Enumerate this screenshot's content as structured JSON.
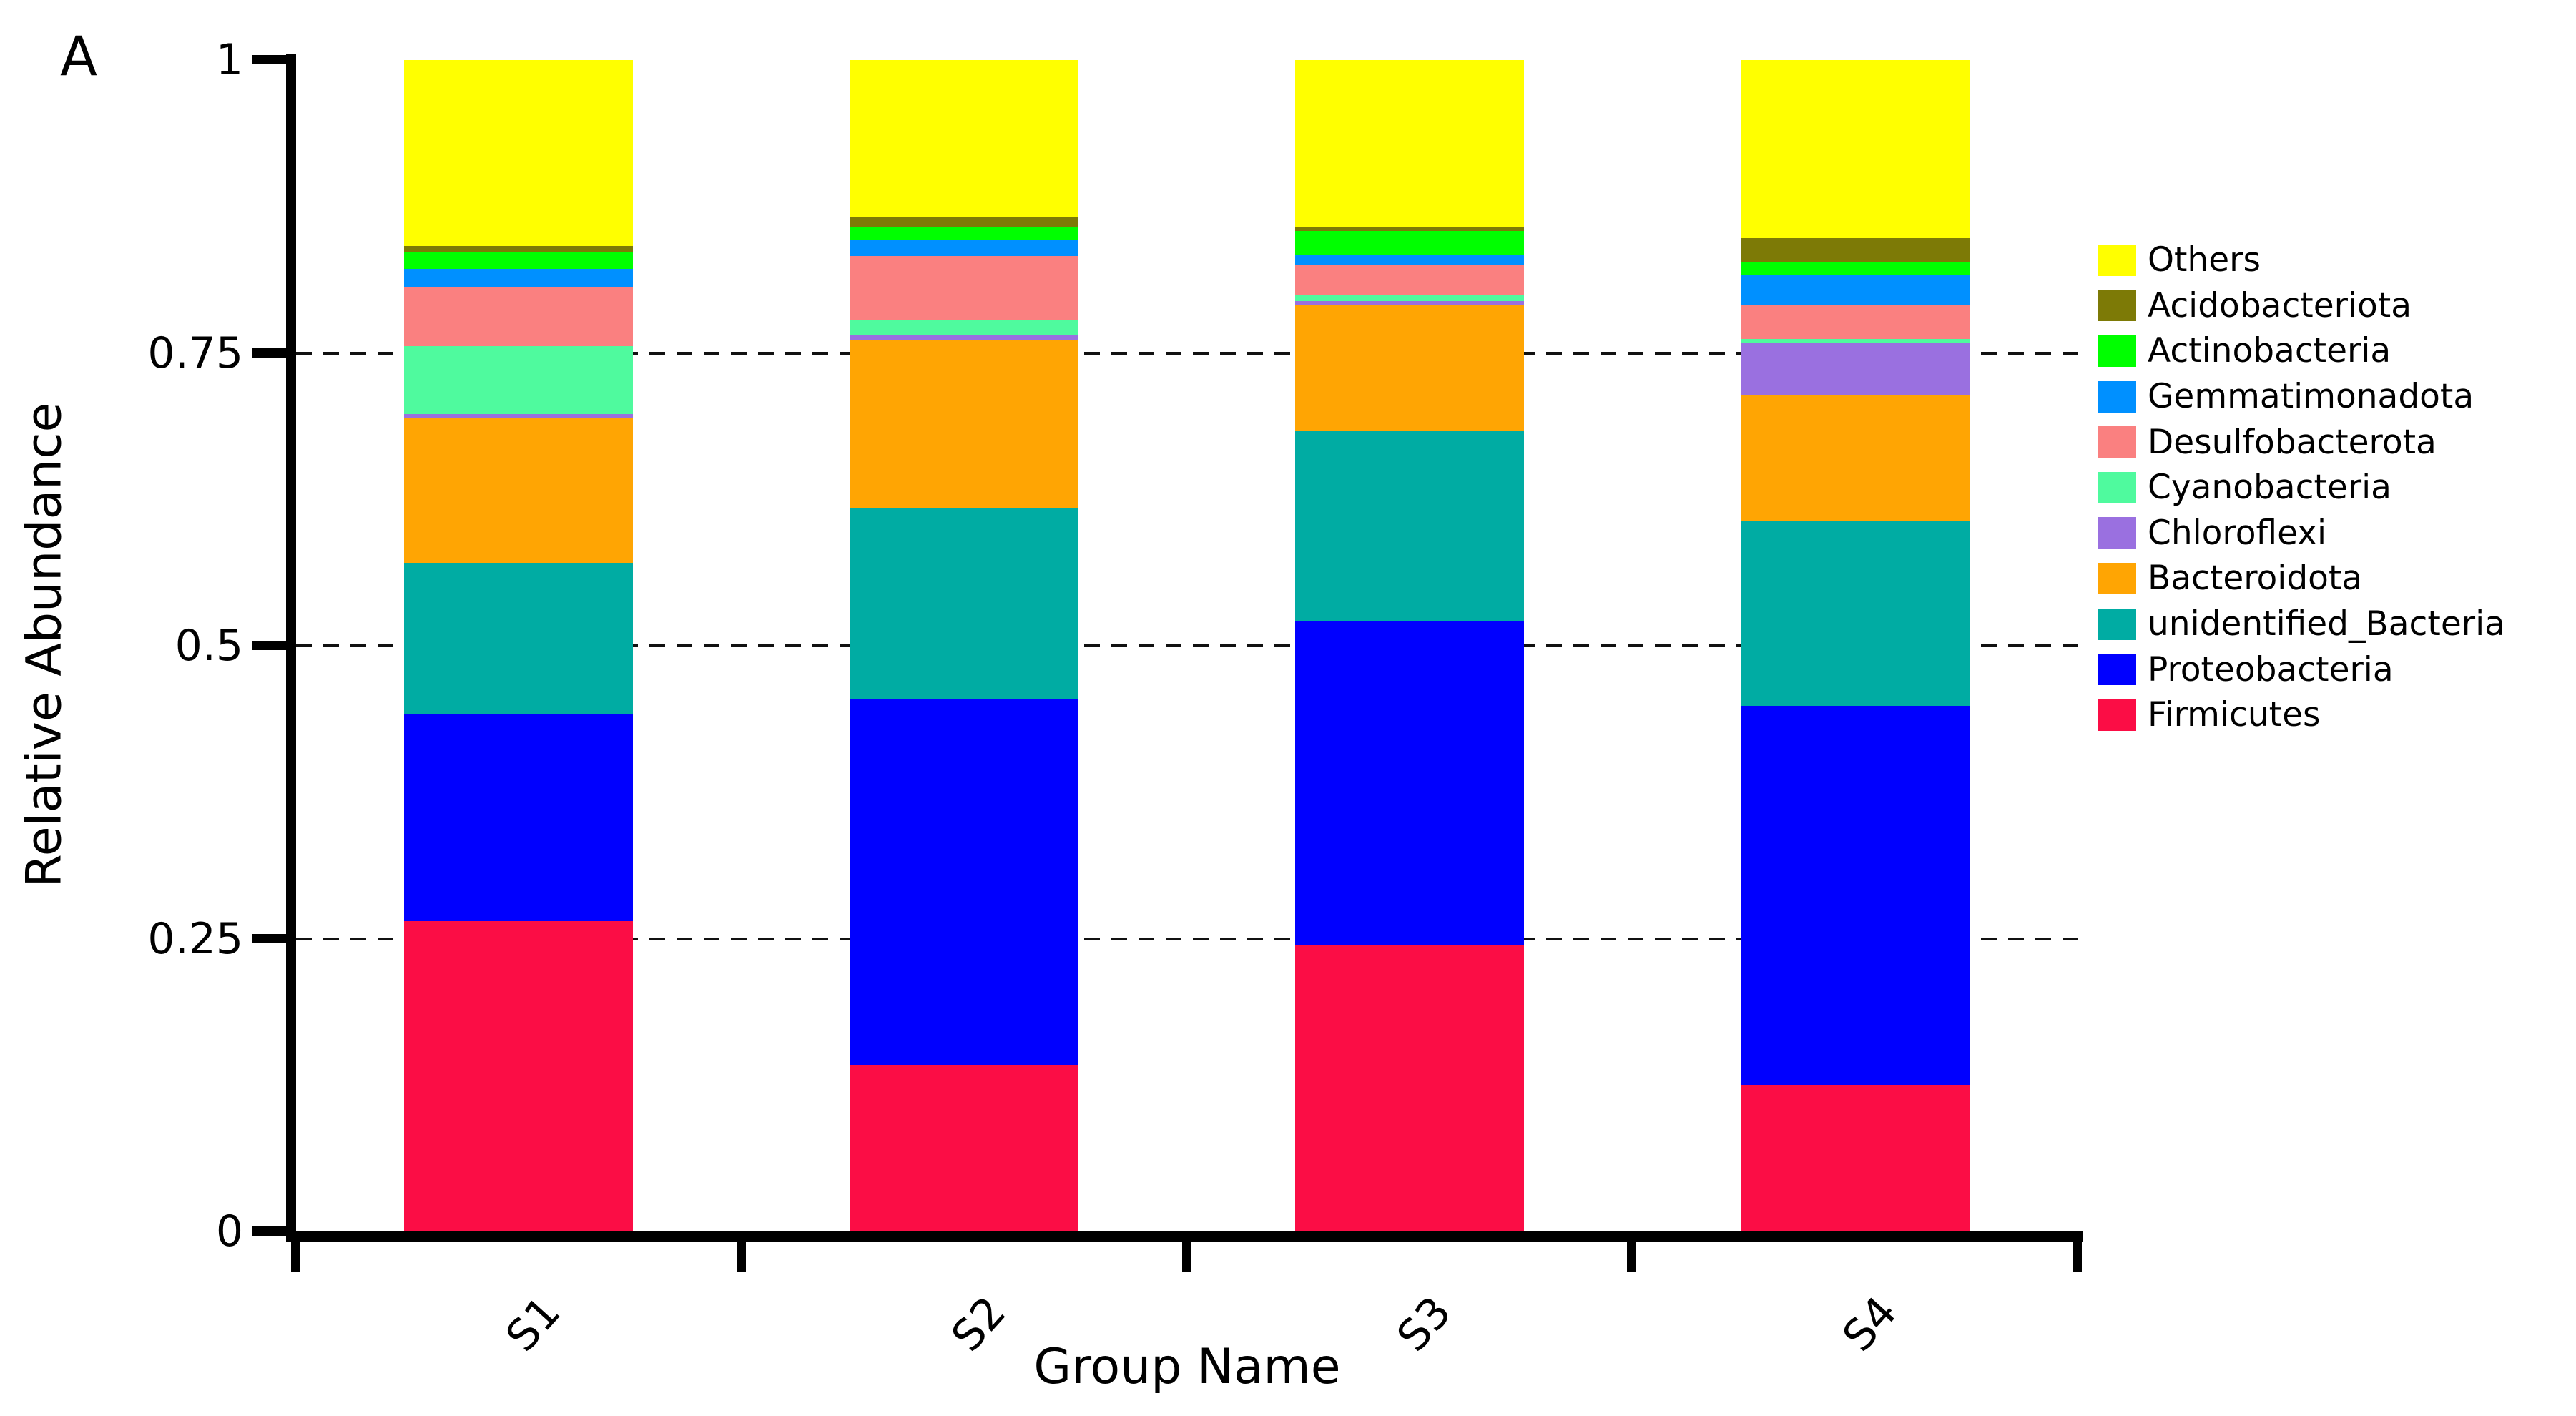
{
  "panel_label": "A",
  "y_axis": {
    "title": "Relative Abundance",
    "ticks": [
      "1",
      "0.75",
      "0.5",
      "0.25",
      "0"
    ],
    "tick_values": [
      1,
      0.75,
      0.5,
      0.25,
      0
    ]
  },
  "x_axis": {
    "title": "Group Name"
  },
  "chart_data": {
    "type": "bar",
    "stacked": true,
    "title": "",
    "xlabel": "Group Name",
    "ylabel": "Relative Abundance",
    "ylim": [
      0,
      1
    ],
    "grid": "dashed horizontal",
    "gridline_values": [
      0.25,
      0.5,
      0.75
    ],
    "legend_position": "right",
    "categories": [
      "S1",
      "S2",
      "S3",
      "S4"
    ],
    "series": [
      {
        "name": "Others",
        "color": "#FFFF00",
        "values": [
          0.159,
          0.134,
          0.142,
          0.152
        ]
      },
      {
        "name": "Acidobacteriota",
        "color": "#7D7A06",
        "values": [
          0.005,
          0.008,
          0.004,
          0.021
        ]
      },
      {
        "name": "Actinobacteria",
        "color": "#00FF00",
        "values": [
          0.014,
          0.011,
          0.02,
          0.01
        ]
      },
      {
        "name": "Gemmatimonadota",
        "color": "#0090FF",
        "values": [
          0.016,
          0.014,
          0.009,
          0.026
        ]
      },
      {
        "name": "Desulfobacterota",
        "color": "#FA8080",
        "values": [
          0.05,
          0.055,
          0.025,
          0.029
        ]
      },
      {
        "name": "Cyanobacteria",
        "color": "#4FFA9E",
        "values": [
          0.058,
          0.013,
          0.006,
          0.003
        ]
      },
      {
        "name": "Chloroflexi",
        "color": "#9A70E0",
        "values": [
          0.003,
          0.004,
          0.003,
          0.045
        ]
      },
      {
        "name": "Bacteroidota",
        "color": "#FFA503",
        "values": [
          0.124,
          0.144,
          0.107,
          0.108
        ]
      },
      {
        "name": "unidentified_Bacteria",
        "color": "#00ACA3",
        "values": [
          0.129,
          0.163,
          0.163,
          0.157
        ]
      },
      {
        "name": "Proteobacteria",
        "color": "#0000FF",
        "values": [
          0.177,
          0.312,
          0.276,
          0.324
        ]
      },
      {
        "name": "Firmicutes",
        "color": "#FB0D45",
        "values": [
          0.265,
          0.142,
          0.245,
          0.125
        ]
      }
    ]
  }
}
